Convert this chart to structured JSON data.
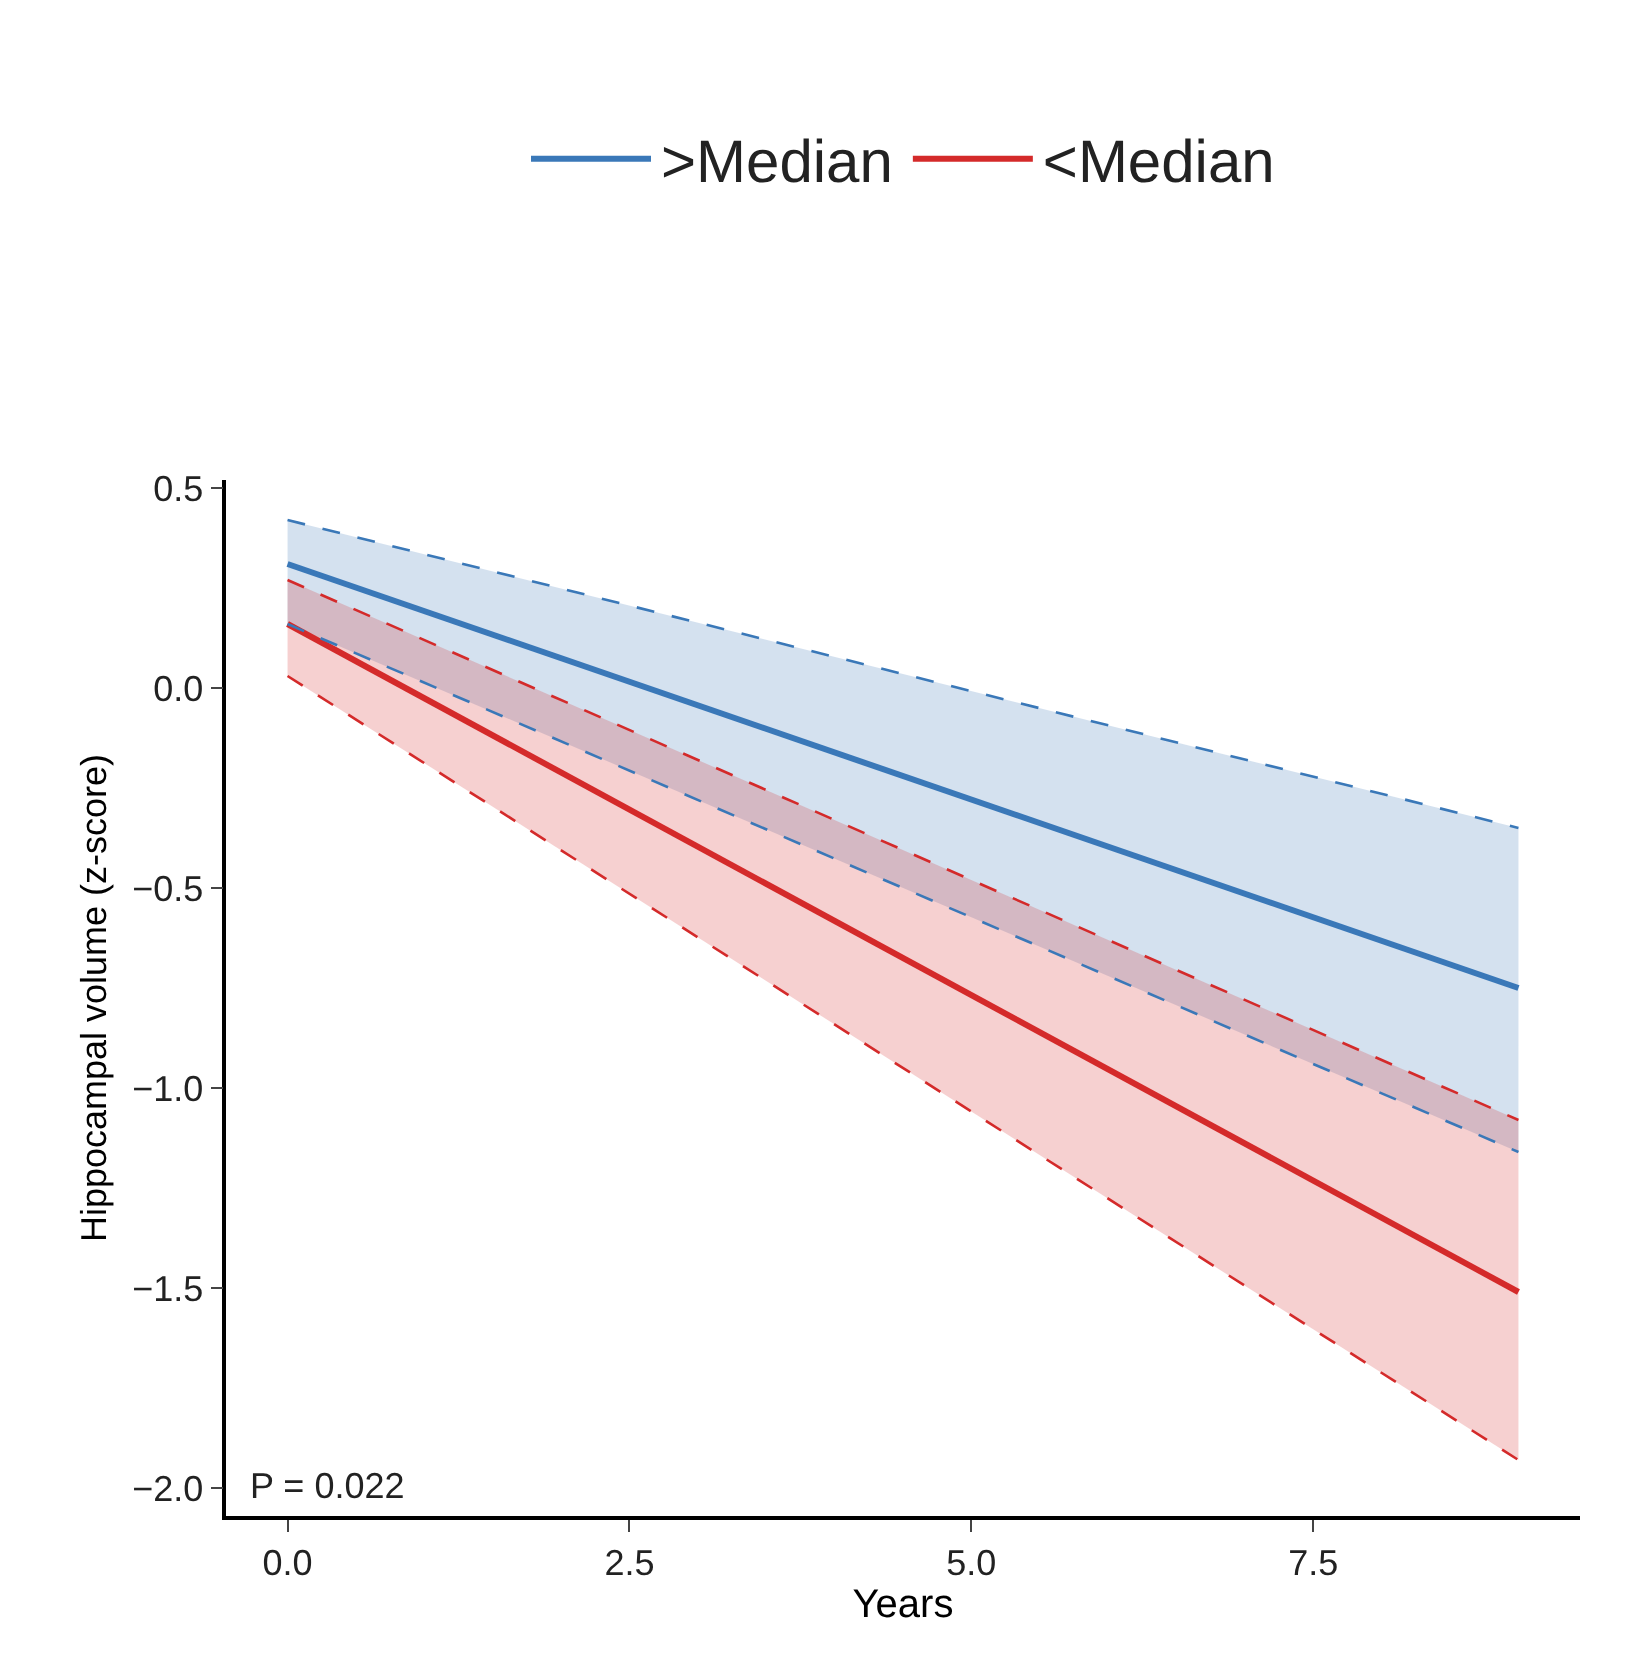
{
  "chart_data": {
    "type": "line",
    "xlabel": "Years",
    "ylabel": "Hippocampal volume (z-score)",
    "x": [
      0,
      9
    ],
    "xlim": [
      -0.45,
      9.45
    ],
    "xticks": [
      {
        "value": 0,
        "label": "0.0"
      },
      2.5,
      {
        "value": 5,
        "label": "5.0"
      },
      7.5
    ],
    "ylim": [
      -2.07,
      0.52
    ],
    "yticks": [
      0.5,
      {
        "value": 0,
        "label": "0.0"
      },
      {
        "value": -0.5,
        "label": "−0.5"
      },
      {
        "value": -1,
        "label": "−1.0"
      },
      {
        "value": -1.5,
        "label": "−1.5"
      },
      {
        "value": -2,
        "label": "−2.0"
      }
    ],
    "series": [
      {
        "name": ">Median",
        "color": "#3a78b8",
        "values": [
          0.31,
          -0.75
        ],
        "lower": [
          0.16,
          -1.16
        ],
        "upper": [
          0.42,
          -0.35
        ]
      },
      {
        "name": "<Median",
        "color": "#d42a2a",
        "values": [
          0.16,
          -1.51
        ],
        "lower": [
          0.03,
          -1.93
        ],
        "upper": [
          0.27,
          -1.08
        ]
      },
      {
        "color": "#3a78b8",
        "values": [
          0.42,
          -0.35
        ],
        "line_style": "dashed"
      },
      {
        "color": "#3a78b8",
        "values": [
          0.16,
          -1.16
        ],
        "line_style": "dashed"
      },
      {
        "color": "#d42a2a",
        "values": [
          0.27,
          -1.08
        ],
        "line_style": "dashed"
      },
      {
        "color": "#d42a2a",
        "values": [
          0.03,
          -1.93
        ],
        "line_style": "dashed"
      }
    ],
    "annotations": [
      "P = 0.022"
    ],
    "legend": "top",
    "marker": "none",
    "line_style": "solid"
  }
}
